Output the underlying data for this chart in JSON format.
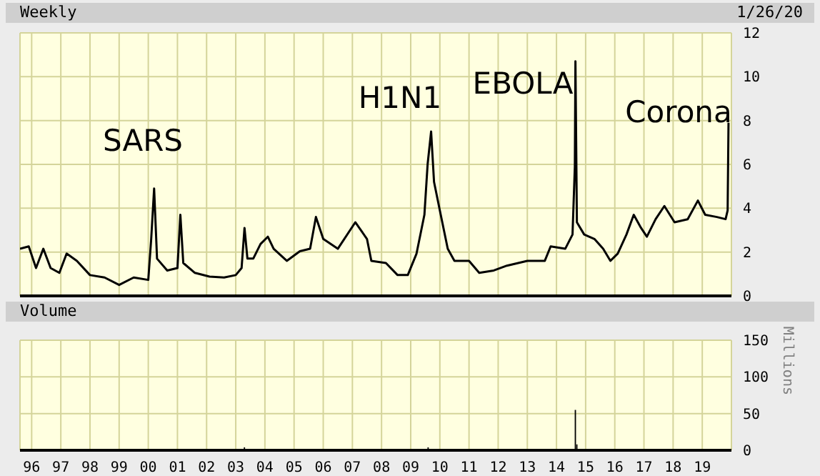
{
  "chart_data": [
    {
      "type": "line",
      "title": "Weekly",
      "annotations": [
        "1/26/20",
        "SARS",
        "H1N1",
        "EBOLA",
        "Corona"
      ],
      "series": [
        {
          "color": "#000000",
          "x": [
            1995.6,
            1995.9,
            1996.15,
            1996.4,
            1996.65,
            1996.95,
            1997.2,
            1997.55,
            1998.0,
            1998.5,
            1999.0,
            1999.5,
            2000.0,
            2000.1,
            2000.2,
            2000.3,
            2000.65,
            2001.0,
            2001.1,
            2001.2,
            2001.6,
            2002.1,
            2002.6,
            2003.0,
            2003.2,
            2003.3,
            2003.4,
            2003.6,
            2003.85,
            2004.1,
            2004.3,
            2004.75,
            2005.2,
            2005.55,
            2005.75,
            2006.0,
            2006.5,
            2007.1,
            2007.5,
            2007.65,
            2008.15,
            2008.55,
            2008.9,
            2009.2,
            2009.47,
            2009.58,
            2009.7,
            2009.8,
            2010.03,
            2010.27,
            2010.5,
            2011.0,
            2011.35,
            2011.85,
            2012.3,
            2013.0,
            2013.6,
            2013.8,
            2014.3,
            2014.55,
            2014.63,
            2014.65,
            2014.7,
            2014.95,
            2015.3,
            2015.6,
            2015.85,
            2016.1,
            2016.4,
            2016.65,
            2016.9,
            2017.1,
            2017.4,
            2017.7,
            2018.05,
            2018.5,
            2018.85,
            2019.1,
            2019.5,
            2019.8,
            2019.87,
            2019.9
          ],
          "values": [
            2.15,
            2.26,
            1.27,
            2.15,
            1.27,
            1.05,
            1.93,
            1.6,
            0.95,
            0.84,
            0.5,
            0.84,
            0.73,
            2.6,
            4.9,
            1.7,
            1.16,
            1.27,
            3.7,
            1.5,
            1.05,
            0.88,
            0.84,
            0.95,
            1.27,
            3.1,
            1.7,
            1.7,
            2.37,
            2.7,
            2.15,
            1.6,
            2.04,
            2.15,
            3.6,
            2.6,
            2.15,
            3.36,
            2.6,
            1.6,
            1.5,
            0.95,
            0.95,
            1.93,
            3.7,
            6.0,
            7.5,
            5.2,
            3.7,
            2.15,
            1.6,
            1.6,
            1.05,
            1.16,
            1.38,
            1.6,
            1.6,
            2.26,
            2.15,
            2.8,
            5.9,
            10.7,
            3.36,
            2.8,
            2.6,
            2.15,
            1.6,
            1.93,
            2.8,
            3.7,
            3.1,
            2.7,
            3.5,
            4.1,
            3.36,
            3.5,
            4.35,
            3.7,
            3.6,
            3.5,
            3.9,
            7.9
          ]
        }
      ],
      "xlim": [
        1995.6,
        2020.0
      ],
      "xticks": [
        1996,
        1997,
        1998,
        1999,
        2000,
        2001,
        2002,
        2003,
        2004,
        2005,
        2006,
        2007,
        2008,
        2009,
        2010,
        2011,
        2012,
        2013,
        2014,
        2015,
        2016,
        2017,
        2018,
        2019
      ],
      "ylim": [
        0,
        12
      ],
      "yticks": [
        0,
        2,
        4,
        6,
        8,
        10,
        12
      ],
      "grid": true,
      "tick_labels": "y"
    },
    {
      "type": "bar",
      "title": "Volume",
      "ylabel": "Millions",
      "series": [
        {
          "color": "#000000",
          "x": [
            2003.3,
            2009.6,
            2014.65,
            2014.7
          ],
          "values": [
            4,
            4,
            55,
            8
          ]
        }
      ],
      "xlim": [
        1995.6,
        2020.0
      ],
      "xticks": [
        {
          "value": 1996,
          "label": "96"
        },
        {
          "value": 1997,
          "label": "97"
        },
        {
          "value": 1998,
          "label": "98"
        },
        {
          "value": 1999,
          "label": "99"
        },
        {
          "value": 2000,
          "label": "00"
        },
        {
          "value": 2001,
          "label": "01"
        },
        {
          "value": 2002,
          "label": "02"
        },
        {
          "value": 2003,
          "label": "03"
        },
        {
          "value": 2004,
          "label": "04"
        },
        {
          "value": 2005,
          "label": "05"
        },
        {
          "value": 2006,
          "label": "06"
        },
        {
          "value": 2007,
          "label": "07"
        },
        {
          "value": 2008,
          "label": "08"
        },
        {
          "value": 2009,
          "label": "09"
        },
        {
          "value": 2010,
          "label": "10"
        },
        {
          "value": 2011,
          "label": "11"
        },
        {
          "value": 2012,
          "label": "12"
        },
        {
          "value": 2013,
          "label": "13"
        },
        {
          "value": 2014,
          "label": "14"
        },
        {
          "value": 2015,
          "label": "15"
        },
        {
          "value": 2016,
          "label": "16"
        },
        {
          "value": 2017,
          "label": "17"
        },
        {
          "value": 2018,
          "label": "18"
        },
        {
          "value": 2019,
          "label": "19"
        }
      ],
      "ylim": [
        0,
        150
      ],
      "yticks": [
        0,
        50,
        100,
        150
      ],
      "grid": true
    }
  ]
}
